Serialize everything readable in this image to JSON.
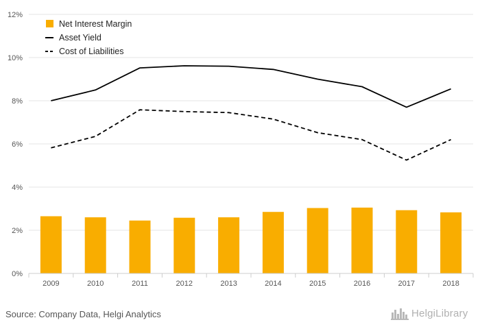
{
  "chart_data": {
    "type": "bar",
    "categories": [
      "2009",
      "2010",
      "2011",
      "2012",
      "2013",
      "2014",
      "2015",
      "2016",
      "2017",
      "2018"
    ],
    "series": [
      {
        "name": "Net Interest Margin",
        "type": "bar",
        "color": "#f9ad00",
        "values": [
          2.65,
          2.6,
          2.45,
          2.58,
          2.6,
          2.85,
          3.03,
          3.05,
          2.93,
          2.83
        ]
      },
      {
        "name": "Asset Yield",
        "type": "line",
        "style": "solid",
        "color": "#000000",
        "values": [
          8.0,
          8.5,
          9.52,
          9.62,
          9.6,
          9.45,
          9.0,
          8.65,
          7.7,
          8.55
        ]
      },
      {
        "name": "Cost of Liabilities",
        "type": "line",
        "style": "dashed",
        "color": "#000000",
        "values": [
          5.82,
          6.35,
          7.58,
          7.5,
          7.45,
          7.15,
          6.52,
          6.2,
          5.25,
          6.2
        ]
      }
    ],
    "ylim": [
      0,
      12
    ],
    "yticks": [
      0,
      2,
      4,
      6,
      8,
      10,
      12
    ],
    "ytick_labels": [
      "0%",
      "2%",
      "4%",
      "6%",
      "8%",
      "10%",
      "12%"
    ],
    "grid": "horizontal",
    "legend_position": "top-left"
  },
  "source_text": "Source: Company Data, Helgi Analytics",
  "logo": {
    "text": "HelgiLibrary",
    "icon": "city-skyline-icon"
  }
}
